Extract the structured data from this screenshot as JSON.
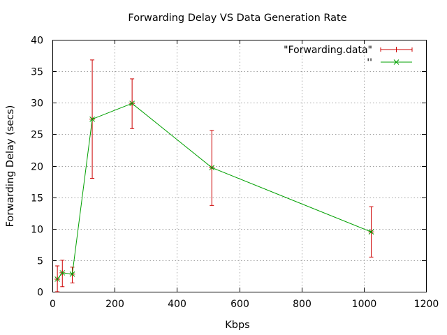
{
  "chart_data": {
    "type": "line",
    "title": "Forwarding Delay VS Data Generation Rate",
    "xlabel": "Kbps",
    "ylabel": "Forwarding Delay (secs)",
    "xlim": [
      0,
      1200
    ],
    "ylim": [
      0,
      40
    ],
    "xticks": [
      0,
      200,
      400,
      600,
      800,
      1000,
      1200
    ],
    "yticks": [
      0,
      5,
      10,
      15,
      20,
      25,
      30,
      35,
      40
    ],
    "grid": true,
    "legend_position": "top-right",
    "series": [
      {
        "name": "\"Forwarding.data\"",
        "style": "errorbars",
        "color": "#cc0000",
        "points": [
          {
            "x": 16,
            "y": 2.0,
            "ylow": 0.0,
            "yhigh": 4.1
          },
          {
            "x": 32,
            "y": 3.0,
            "ylow": 0.8,
            "yhigh": 5.0
          },
          {
            "x": 64,
            "y": 2.8,
            "ylow": 1.4,
            "yhigh": 3.9
          },
          {
            "x": 128,
            "y": 27.4,
            "ylow": 18.0,
            "yhigh": 36.8
          },
          {
            "x": 256,
            "y": 29.9,
            "ylow": 25.9,
            "yhigh": 33.8
          },
          {
            "x": 512,
            "y": 19.7,
            "ylow": 13.7,
            "yhigh": 25.6
          },
          {
            "x": 1024,
            "y": 9.5,
            "ylow": 5.5,
            "yhigh": 13.5
          }
        ]
      },
      {
        "name": "''",
        "style": "linespoints",
        "color": "#00a000",
        "points": [
          {
            "x": 16,
            "y": 2.0
          },
          {
            "x": 32,
            "y": 3.0
          },
          {
            "x": 64,
            "y": 2.8
          },
          {
            "x": 128,
            "y": 27.4
          },
          {
            "x": 256,
            "y": 29.9
          },
          {
            "x": 512,
            "y": 19.7
          },
          {
            "x": 1024,
            "y": 9.5
          }
        ]
      }
    ]
  }
}
